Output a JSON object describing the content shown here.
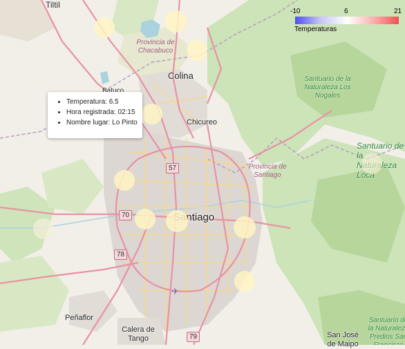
{
  "map": {
    "places": [
      {
        "id": "tiltil",
        "name": "Tiltil"
      },
      {
        "id": "colina",
        "name": "Colina"
      },
      {
        "id": "batuco",
        "name": "Batuco"
      },
      {
        "id": "chicureo",
        "name": "Chicureo"
      },
      {
        "id": "santiago",
        "name": "Santiago"
      },
      {
        "id": "penaflor",
        "name": "Peñaflor"
      },
      {
        "id": "calera",
        "name": "Calera de Tango"
      },
      {
        "id": "sanjose",
        "name": "San José de Maipo"
      },
      {
        "id": "sanjosecut",
        "name": "San José de Maipo"
      }
    ],
    "provinces": [
      {
        "id": "chacabuco",
        "name": "Provincia de Chacabuco"
      },
      {
        "id": "santiago",
        "name": "Provincia de Santiago"
      }
    ],
    "parks": [
      {
        "id": "nogales",
        "name": "Santuario de la Naturaleza Los Nogales"
      },
      {
        "id": "loca",
        "name": "Santuario de la Naturaleza Loca"
      },
      {
        "id": "predios",
        "name": "Santuario de la Naturaleza Predios San Francisco"
      }
    ],
    "routes": [
      "57",
      "70",
      "78",
      "79"
    ]
  },
  "legend": {
    "title": "Temperaturas",
    "ticks": [
      "-10",
      "6",
      "21"
    ],
    "colors": {
      "low": "#4f4ff2",
      "mid": "#ffffff",
      "high": "#f25050"
    }
  },
  "popup": {
    "items": [
      "Temperatura: 6.5",
      "Hora registrada: 02:15",
      "Nombre lugar: Lo Pinto"
    ]
  },
  "markers_count": 12
}
